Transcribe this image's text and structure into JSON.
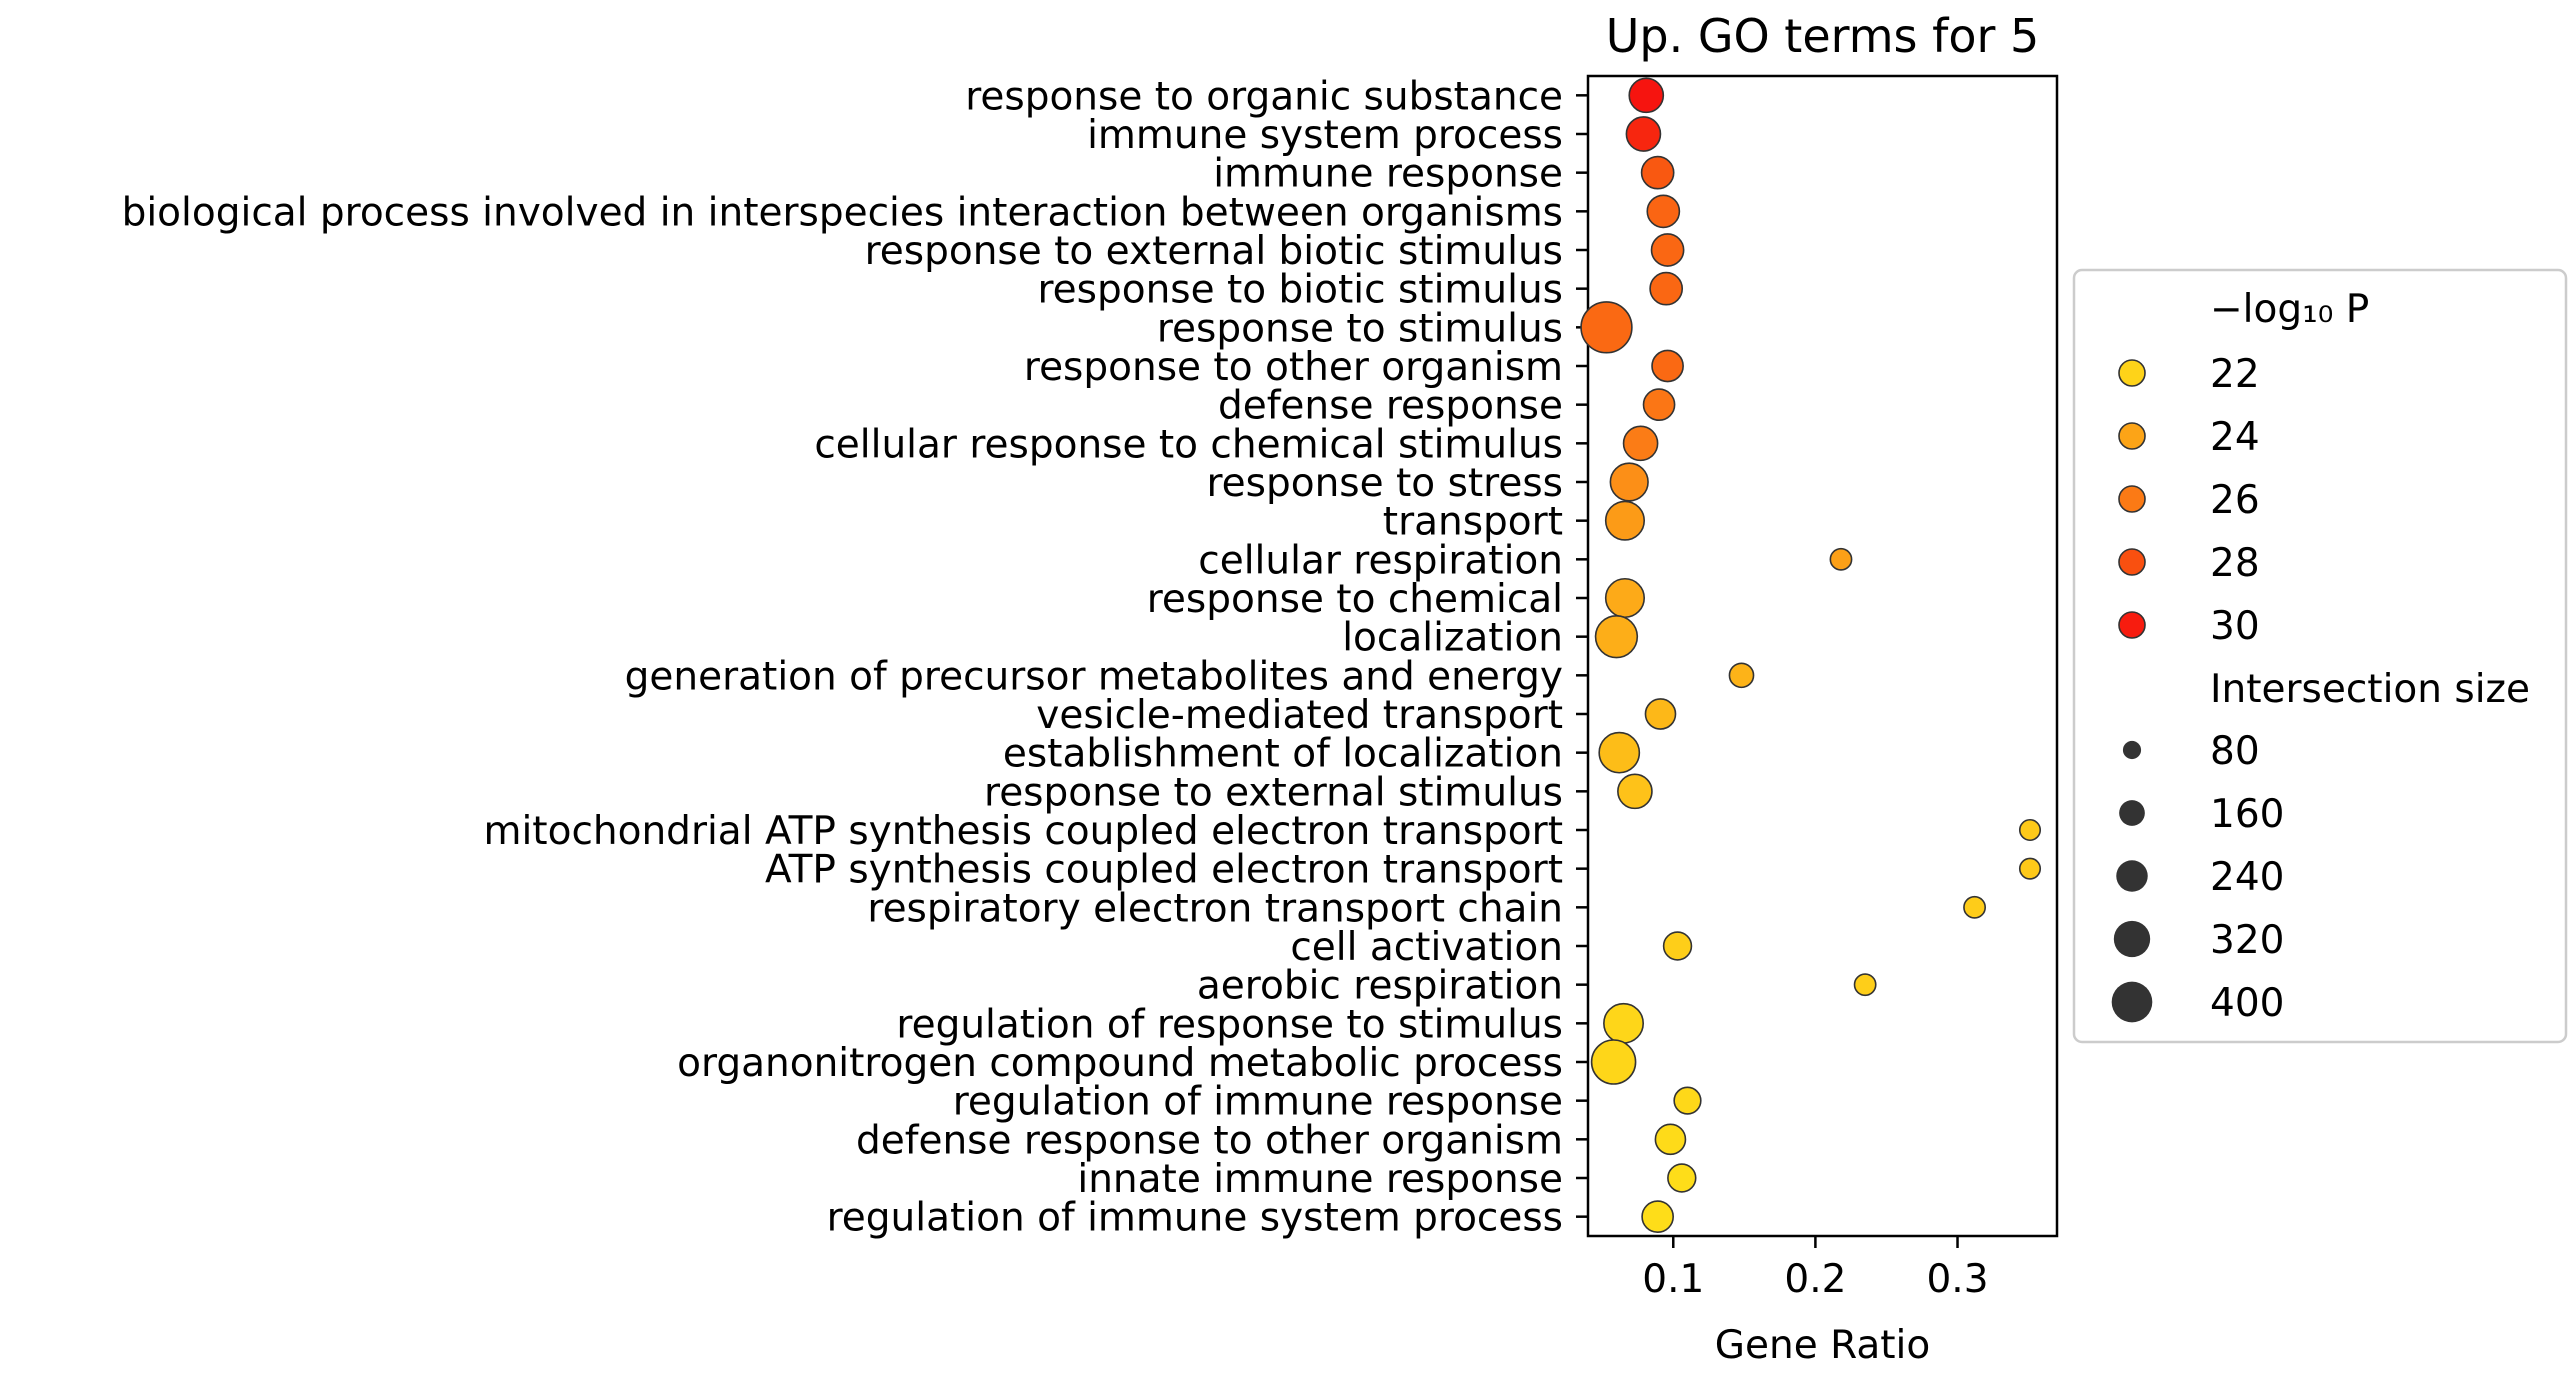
{
  "chart_data": {
    "type": "scatter",
    "title": "Up. GO terms for 5",
    "xlabel": "Gene Ratio",
    "ylabel": "",
    "xlim": [
      0.04,
      0.37
    ],
    "xticks": [
      0.1,
      0.2,
      0.3
    ],
    "xtick_labels": [
      "0.1",
      "0.2",
      "0.3"
    ],
    "grid": false,
    "color_scale": {
      "metric": "-log10 P",
      "min": 21.0,
      "max": 30.5,
      "stops": [
        "#ffec1a",
        "#fdb118",
        "#fb7f16",
        "#f94d10",
        "#f60f0f"
      ]
    },
    "size_scale": {
      "metric": "Intersection size",
      "min": 60,
      "max": 420
    },
    "points": [
      {
        "term": "response to organic substance",
        "ratio": 0.081,
        "neglog10p": 30.3,
        "size": 180
      },
      {
        "term": "immune system process",
        "ratio": 0.079,
        "neglog10p": 29.6,
        "size": 180
      },
      {
        "term": "immune response",
        "ratio": 0.089,
        "neglog10p": 27.6,
        "size": 160
      },
      {
        "term": "biological process involved in interspecies interaction between organisms",
        "ratio": 0.093,
        "neglog10p": 27.0,
        "size": 160
      },
      {
        "term": "response to external biotic stimulus",
        "ratio": 0.096,
        "neglog10p": 26.9,
        "size": 160
      },
      {
        "term": "response to biotic stimulus",
        "ratio": 0.095,
        "neglog10p": 26.9,
        "size": 160
      },
      {
        "term": "response to stimulus",
        "ratio": 0.053,
        "neglog10p": 26.8,
        "size": 400
      },
      {
        "term": "response to other organism",
        "ratio": 0.096,
        "neglog10p": 26.8,
        "size": 150
      },
      {
        "term": "defense response",
        "ratio": 0.09,
        "neglog10p": 26.2,
        "size": 150
      },
      {
        "term": "cellular response to chemical stimulus",
        "ratio": 0.077,
        "neglog10p": 25.9,
        "size": 180
      },
      {
        "term": "response to stress",
        "ratio": 0.069,
        "neglog10p": 25.0,
        "size": 220
      },
      {
        "term": "transport",
        "ratio": 0.066,
        "neglog10p": 24.4,
        "size": 230
      },
      {
        "term": "cellular respiration",
        "ratio": 0.218,
        "neglog10p": 24.2,
        "size": 70
      },
      {
        "term": "response to chemical",
        "ratio": 0.066,
        "neglog10p": 23.7,
        "size": 230
      },
      {
        "term": "localization",
        "ratio": 0.06,
        "neglog10p": 23.5,
        "size": 270
      },
      {
        "term": "generation of precursor metabolites and energy",
        "ratio": 0.148,
        "neglog10p": 23.3,
        "size": 90
      },
      {
        "term": "vesicle-mediated transport",
        "ratio": 0.091,
        "neglog10p": 23.1,
        "size": 140
      },
      {
        "term": "establishment of localization",
        "ratio": 0.062,
        "neglog10p": 22.9,
        "size": 250
      },
      {
        "term": "response to external stimulus",
        "ratio": 0.073,
        "neglog10p": 22.7,
        "size": 180
      },
      {
        "term": "mitochondrial ATP synthesis coupled electron transport",
        "ratio": 0.351,
        "neglog10p": 22.4,
        "size": 65
      },
      {
        "term": "ATP synthesis coupled electron transport",
        "ratio": 0.351,
        "neglog10p": 22.4,
        "size": 65
      },
      {
        "term": "respiratory electron transport chain",
        "ratio": 0.312,
        "neglog10p": 22.3,
        "size": 70
      },
      {
        "term": "cell activation",
        "ratio": 0.103,
        "neglog10p": 22.2,
        "size": 120
      },
      {
        "term": "aerobic respiration",
        "ratio": 0.235,
        "neglog10p": 22.2,
        "size": 70
      },
      {
        "term": "regulation of response to stimulus",
        "ratio": 0.065,
        "neglog10p": 21.9,
        "size": 240
      },
      {
        "term": "organonitrogen compound metabolic process",
        "ratio": 0.058,
        "neglog10p": 21.9,
        "size": 300
      },
      {
        "term": "regulation of immune response",
        "ratio": 0.11,
        "neglog10p": 21.8,
        "size": 110
      },
      {
        "term": "defense response to other organism",
        "ratio": 0.098,
        "neglog10p": 21.7,
        "size": 140
      },
      {
        "term": "innate immune response",
        "ratio": 0.106,
        "neglog10p": 21.6,
        "size": 120
      },
      {
        "term": "regulation of immune system process",
        "ratio": 0.089,
        "neglog10p": 21.6,
        "size": 150
      }
    ],
    "legend": {
      "position": "right",
      "color_title": "−log₁₀ P",
      "color_entries": [
        {
          "label": "22",
          "value": 22
        },
        {
          "label": "24",
          "value": 24
        },
        {
          "label": "26",
          "value": 26
        },
        {
          "label": "28",
          "value": 28
        },
        {
          "label": "30",
          "value": 30
        }
      ],
      "size_title": "Intersection size",
      "size_entries": [
        {
          "label": "80",
          "value": 80
        },
        {
          "label": "160",
          "value": 160
        },
        {
          "label": "240",
          "value": 240
        },
        {
          "label": "320",
          "value": 320
        },
        {
          "label": "400",
          "value": 400
        }
      ]
    }
  }
}
